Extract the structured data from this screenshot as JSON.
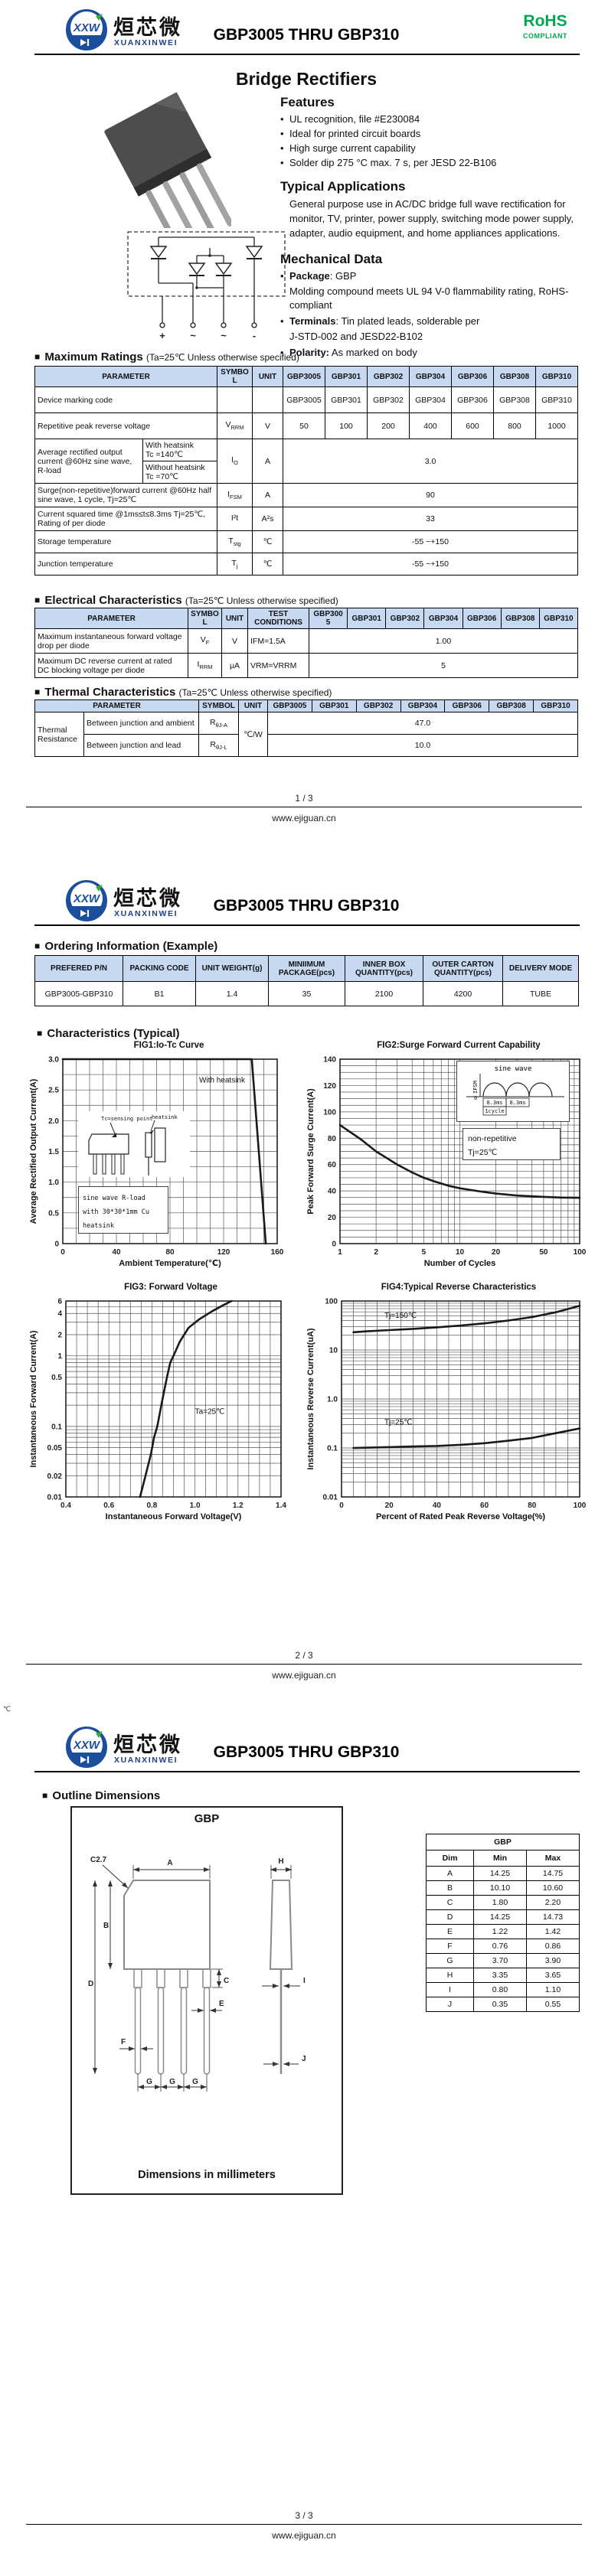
{
  "brand": {
    "logo_text": "XXW",
    "name_cn": "烜芯微",
    "name_en": "XUANXINWEI",
    "doc_title": "GBP3005 THRU GBP310",
    "rohs": "RoHS",
    "compliant": "COMPLIANT",
    "accent_green": "#00a94f",
    "logo_blue": "#1c4e9e",
    "table_header_blue": "#c6d9f1"
  },
  "footers": {
    "site": "www.ejiguan.cn",
    "pages": [
      "1 / 3",
      "2 / 3",
      "3 / 3"
    ]
  },
  "artifact": "℃",
  "page1": {
    "product_title": "Bridge Rectifiers",
    "features": {
      "heading": "Features",
      "items": [
        "UL recognition, file #E230084",
        "Ideal for printed circuit boards",
        "High surge current capability",
        "Solder dip 275 °C max. 7 s, per JESD 22-B106"
      ]
    },
    "applications": {
      "heading": "Typical Applications",
      "text": "General purpose use in AC/DC bridge full wave rectification for monitor, TV, printer, power supply, switching mode power supply, adapter, audio equipment, and home appliances applications."
    },
    "mechanical": {
      "heading": "Mechanical Data",
      "items": [
        {
          "label": "Package",
          "rest": ": GBP",
          "extra": "Molding compound meets UL 94 V-0 flammability rating, RoHS-compliant"
        },
        {
          "label": "Terminals",
          "rest": ": Tin plated leads, solderable per",
          "extra": "J-STD-002 and JESD22-B102"
        },
        {
          "label": "Polarity:",
          "rest": " As marked on body",
          "extra": ""
        }
      ]
    },
    "schematic": {
      "terminals": [
        "+",
        "~",
        "~",
        "-"
      ]
    },
    "max_ratings": {
      "heading": "Maximum Ratings",
      "cond": "(Ta=25℃ Unless otherwise specified)",
      "headers": [
        "PARAMETER",
        "SYMBOL",
        "UNIT",
        "GBP3005",
        "GBP301",
        "GBP302",
        "GBP304",
        "GBP306",
        "GBP308",
        "GBP310"
      ],
      "marking": {
        "param": "Device marking code",
        "values": [
          "GBP3005",
          "GBP301",
          "GBP302",
          "GBP304",
          "GBP306",
          "GBP308",
          "GBP310"
        ]
      },
      "vrrm": {
        "param": "Repetitive peak reverse voltage",
        "sym": {
          "t": "V",
          "s": "RRM"
        },
        "unit": "V",
        "values": [
          "50",
          "100",
          "200",
          "400",
          "600",
          "800",
          "1000"
        ]
      },
      "io": {
        "param": "Average rectified output current @60Hz sine wave, R-load",
        "hs1": "With heatsink",
        "hs1t": "Tc =140℃",
        "hs2": "Without heatsink",
        "hs2t": "Tc =70℃",
        "sym": {
          "t": "I",
          "s": "O"
        },
        "unit": "A",
        "value": "3.0"
      },
      "ifsm": {
        "param": "Surge(non-repetitive)forward current @60Hz half sine wave, 1 cycle, Tj=25℃",
        "sym": {
          "t": "I",
          "s": "FSM"
        },
        "unit": "A",
        "value": "90"
      },
      "i2t": {
        "param": "Current squared time @1ms≤t≤8.3ms Tj=25℃, Rating of per diode",
        "sym": {
          "t": "I²t",
          "s": ""
        },
        "unit": "A²s",
        "value": "33"
      },
      "tstg": {
        "param": "Storage temperature",
        "sym": {
          "t": "T",
          "s": "stg"
        },
        "unit": "℃",
        "value": "-55 ~+150"
      },
      "tj": {
        "param": "Junction temperature",
        "sym": {
          "t": "T",
          "s": "j"
        },
        "unit": "℃",
        "value": "-55 ~+150"
      }
    },
    "electrical": {
      "heading": "Electrical Characteristics",
      "cond": "(Ta=25℃ Unless otherwise specified)",
      "headers": [
        "PARAMETER",
        "SYMBOL",
        "UNIT",
        "TEST CONDITIONS",
        "GBP3005",
        "GBP301",
        "GBP302",
        "GBP304",
        "GBP306",
        "GBP308",
        "GBP310"
      ],
      "rows": [
        {
          "param": "Maximum instantaneous forward voltage drop per diode",
          "sym": {
            "t": "V",
            "s": "F"
          },
          "unit": "V",
          "cond": "IFM=1.5A",
          "value": "1.00"
        },
        {
          "param": "Maximum DC reverse current at rated DC blocking voltage per diode",
          "sym": {
            "t": "I",
            "s": "RRM"
          },
          "unit": "μA",
          "cond": "VRM=VRRM",
          "value": "5"
        }
      ]
    },
    "thermal": {
      "heading": "Thermal Characteristics",
      "cond": "(Ta=25℃ Unless otherwise specified)",
      "headers": [
        "PARAMETER",
        "SYMBOL",
        "UNIT",
        "GBP3005",
        "GBP301",
        "GBP302",
        "GBP304",
        "GBP306",
        "GBP308",
        "GBP310"
      ],
      "group": "Thermal Resistance",
      "unit": "℃/W",
      "rows": [
        {
          "desc": "Between junction and ambient",
          "sym": {
            "t": "R",
            "s": "θJ-A"
          },
          "value": "47.0"
        },
        {
          "desc": "Between junction and lead",
          "sym": {
            "t": "R",
            "s": "θJ-L"
          },
          "value": "10.0"
        }
      ]
    }
  },
  "page2": {
    "ordering": {
      "heading": "Ordering Information (Example)",
      "headers": [
        "PREFERED P/N",
        "PACKING CODE",
        "UNIT WEIGHT(g)",
        "MINIIMUM PACKAGE(pcs)",
        "INNER BOX QUANTITY(pcs)",
        "OUTER CARTON QUANTITY(pcs)",
        "DELIVERY MODE"
      ],
      "row": [
        "GBP3005-GBP310",
        "B1",
        "1.4",
        "35",
        "2100",
        "4200",
        "TUBE"
      ]
    },
    "characteristics_heading": "Characteristics (Typical)"
  },
  "chart_data": [
    {
      "id": "fig1",
      "type": "line",
      "title": "FIG1:Io-Tc Curve",
      "xlabel": "Ambient Temperature(℃)",
      "ylabel": "Average Rectified Output Current(A)",
      "xscale": "linear",
      "xlim": [
        0,
        160
      ],
      "xminor": 10,
      "xticks": [
        "0",
        "40",
        "80",
        "120",
        "160"
      ],
      "yscale": "linear",
      "ylim": [
        0,
        3
      ],
      "yminor": 0.25,
      "yticks": [
        "0",
        "0.5",
        "1.0",
        "1.5",
        "2.0",
        "2.5",
        "3.0"
      ],
      "grid": true,
      "legend": "none",
      "series": [
        {
          "name": "With heatsink",
          "x": [
            0,
            141,
            151.5
          ],
          "y": [
            3,
            3,
            0
          ]
        }
      ],
      "annotations": [
        {
          "text": "With heatsink",
          "x": 136,
          "y": 2.62,
          "anchor": "end"
        }
      ],
      "insets": {
        "sensing": "Tc=sensing point",
        "heatsink": "heatsink",
        "note": "sine wave R-load\nwith 30*30*1mm Cu\nheatsink"
      }
    },
    {
      "id": "fig2",
      "type": "line",
      "title": "FIG2:Surge Forward Current Capability",
      "xlabel": "Number of Cycles",
      "ylabel": "Peak Forward Surge Current(A)",
      "xscale": "log",
      "xlim": [
        1,
        100
      ],
      "xticks": [
        "1",
        "2",
        "5",
        "10",
        "20",
        "50",
        "100"
      ],
      "yscale": "linear",
      "ylim": [
        0,
        140
      ],
      "yminor": 5,
      "yticks": [
        "0",
        "20",
        "40",
        "60",
        "80",
        "100",
        "120",
        "140"
      ],
      "grid": true,
      "legend": "none",
      "series": [
        {
          "name": "IFSM",
          "x": [
            1,
            1.5,
            2,
            3,
            4,
            5,
            6,
            8,
            10,
            15,
            20,
            30,
            50,
            70,
            100
          ],
          "y": [
            90,
            79,
            70,
            60,
            54,
            50,
            47.5,
            44,
            42,
            39.5,
            38,
            36.5,
            35.5,
            35,
            34.8
          ]
        }
      ],
      "annotations": [],
      "insets": {
        "wave": "sine wave",
        "ifsm": "IFSM",
        "zero": "0",
        "t1": "8.3ms",
        "t2": "8.3ms",
        "cycle": "1cycle",
        "note": "non-repetitive\nTj=25℃"
      }
    },
    {
      "id": "fig3",
      "type": "line",
      "title": "FIG3: Forward Voltage",
      "xlabel": "Instantaneous Forward Voltage(V)",
      "ylabel": "Instantaneous Forward Current(A)",
      "xscale": "linear",
      "xlim": [
        0.4,
        1.4
      ],
      "xminor": 0.05,
      "xticks": [
        "0.4",
        "0.6",
        "0.8",
        "1.0",
        "1.2",
        "1.4"
      ],
      "yscale": "log",
      "ylim": [
        0.01,
        6
      ],
      "yticks": [
        "0.01",
        "0.02",
        "0.05",
        "0.1",
        "0.5",
        "1",
        "2",
        "4",
        "6"
      ],
      "grid": true,
      "legend": "none",
      "series": [
        {
          "name": "VF",
          "x": [
            0.745,
            0.77,
            0.795,
            0.81,
            0.825,
            0.85,
            0.87,
            0.885,
            0.9,
            0.93,
            0.97,
            1.02,
            1.08,
            1.13,
            1.17
          ],
          "y": [
            0.01,
            0.02,
            0.04,
            0.07,
            0.1,
            0.25,
            0.5,
            0.8,
            1,
            1.6,
            2.5,
            3.3,
            4.3,
            5.2,
            6
          ]
        }
      ],
      "annotations": [
        {
          "text": "Ta=25℃",
          "x": 1.0,
          "y": 0.15,
          "anchor": "start"
        }
      ]
    },
    {
      "id": "fig4",
      "type": "line",
      "title": "FIG4:Typical Reverse Characteristics",
      "xlabel": "Percent of Rated Peak Reverse Voltage(%)",
      "ylabel": "Instantaneous Reverse Current(uA)",
      "xscale": "linear",
      "xlim": [
        0,
        100
      ],
      "xminor": 5,
      "xticks": [
        "0",
        "20",
        "40",
        "60",
        "80",
        "100"
      ],
      "yscale": "log",
      "ylim": [
        0.01,
        100
      ],
      "yticks": [
        "0.01",
        "0.1",
        "1.0",
        "10",
        "100"
      ],
      "grid": true,
      "legend": "none",
      "series": [
        {
          "name": "Tj=150℃",
          "x": [
            5,
            10,
            20,
            30,
            40,
            50,
            60,
            70,
            80,
            90,
            100
          ],
          "y": [
            23,
            24,
            25.5,
            27,
            29,
            31.5,
            35,
            40,
            47,
            59,
            80
          ]
        },
        {
          "name": "Tj=25℃",
          "x": [
            5,
            10,
            20,
            30,
            40,
            50,
            60,
            70,
            80,
            90,
            100
          ],
          "y": [
            0.1,
            0.101,
            0.104,
            0.107,
            0.11,
            0.116,
            0.125,
            0.14,
            0.16,
            0.2,
            0.25
          ]
        }
      ],
      "annotations": [
        {
          "text": "Tj=150℃",
          "x": 18,
          "y": 45,
          "anchor": "start"
        },
        {
          "text": "Tj=25℃",
          "x": 18,
          "y": 0.3,
          "anchor": "start"
        }
      ]
    }
  ],
  "page3": {
    "heading": "Outline Dimensions",
    "package_label": "GBP",
    "drawing": {
      "labels": {
        "a": "A",
        "b": "B",
        "c": "C",
        "d": "D",
        "e": "E",
        "f": "F",
        "g": "G",
        "h": "H",
        "i": "I",
        "j": "J"
      },
      "chamfer": "C2.7",
      "note": "Dimensions in millimeters"
    },
    "dims": {
      "title": "GBP",
      "headers": [
        "Dim",
        "Min",
        "Max"
      ],
      "rows": [
        [
          "A",
          "14.25",
          "14.75"
        ],
        [
          "B",
          "10.10",
          "10.60"
        ],
        [
          "C",
          "1.80",
          "2.20"
        ],
        [
          "D",
          "14.25",
          "14.73"
        ],
        [
          "E",
          "1.22",
          "1.42"
        ],
        [
          "F",
          "0.76",
          "0.86"
        ],
        [
          "G",
          "3.70",
          "3.90"
        ],
        [
          "H",
          "3.35",
          "3.65"
        ],
        [
          "I",
          "0.80",
          "1.10"
        ],
        [
          "J",
          "0.35",
          "0.55"
        ]
      ]
    }
  }
}
